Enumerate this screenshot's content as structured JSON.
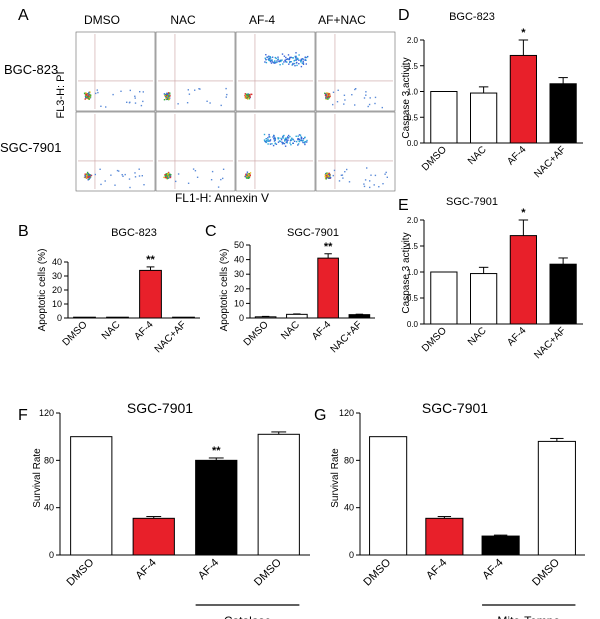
{
  "chart_data": [
    {
      "panel": "A",
      "type": "scatter",
      "title": "",
      "xlabel": "FL1-H: Annexin V",
      "ylabel": "FL3-H: PI",
      "columns": [
        "DMSO",
        "NAC",
        "AF-4",
        "AF+NAC"
      ],
      "rows": [
        "BGC-823",
        "SGC-7901"
      ]
    },
    {
      "panel": "B",
      "type": "bar",
      "title": "BGC-823",
      "ylabel": "Apoptotic cells (%)",
      "xlabel": "",
      "categories": [
        "DMSO",
        "NAC",
        "AF-4",
        "NAC+AF"
      ],
      "values": [
        0.3,
        0.3,
        34,
        0.3
      ],
      "errors": [
        0,
        0,
        2.5,
        0
      ],
      "colors": [
        "#ffffff",
        "#ffffff",
        "#e8202a",
        "#000000"
      ],
      "ylim": [
        0,
        40
      ],
      "yticks": [
        0,
        10,
        20,
        30,
        40
      ],
      "annotations": [
        "",
        "",
        "**",
        ""
      ]
    },
    {
      "panel": "C",
      "type": "bar",
      "title": "SGC-7901",
      "ylabel": "Apoptotic cells (%)",
      "xlabel": "",
      "categories": [
        "DMSO",
        "NAC",
        "AF-4",
        "NAC+AF"
      ],
      "values": [
        0.8,
        2.5,
        41,
        2.3
      ],
      "errors": [
        0.3,
        0.3,
        3,
        0.3
      ],
      "colors": [
        "#ffffff",
        "#ffffff",
        "#e8202a",
        "#000000"
      ],
      "ylim": [
        0,
        50
      ],
      "yticks": [
        0,
        10,
        20,
        30,
        40,
        50
      ],
      "annotations": [
        "",
        "",
        "**",
        ""
      ]
    },
    {
      "panel": "D",
      "type": "bar",
      "title": "BGC-823",
      "ylabel": "Caspase 3 activity",
      "xlabel": "",
      "categories": [
        "DMSO",
        "NAC",
        "AF-4",
        "NAC+AF"
      ],
      "values": [
        1.0,
        0.97,
        1.7,
        1.15
      ],
      "errors": [
        0,
        0.12,
        0.3,
        0.12
      ],
      "colors": [
        "#ffffff",
        "#ffffff",
        "#e8202a",
        "#000000"
      ],
      "ylim": [
        0,
        2.0
      ],
      "yticks": [
        "0.0",
        "0.5",
        "1.0",
        "1.5",
        "2.0"
      ],
      "annotations": [
        "",
        "",
        "*",
        ""
      ]
    },
    {
      "panel": "E",
      "type": "bar",
      "title": "SGC-7901",
      "ylabel": "Caspase 3 activity",
      "xlabel": "",
      "categories": [
        "DMSO",
        "NAC",
        "AF-4",
        "NAC+AF"
      ],
      "values": [
        1.0,
        0.97,
        1.7,
        1.15
      ],
      "errors": [
        0,
        0.12,
        0.3,
        0.12
      ],
      "colors": [
        "#ffffff",
        "#ffffff",
        "#e8202a",
        "#000000"
      ],
      "ylim": [
        0,
        2.0
      ],
      "yticks": [
        "0.0",
        "0.5",
        "1.0",
        "1.5",
        "2.0"
      ],
      "annotations": [
        "",
        "",
        "*",
        ""
      ]
    },
    {
      "panel": "F",
      "type": "bar",
      "title": "SGC-7901",
      "ylabel": "Survival Rate",
      "xlabel": "",
      "categories": [
        "DMSO",
        "AF-4",
        "AF-4",
        "DMSO"
      ],
      "values": [
        100,
        31,
        80,
        102
      ],
      "errors": [
        0,
        1.5,
        2,
        2
      ],
      "colors": [
        "#ffffff",
        "#e8202a",
        "#000000",
        "#ffffff"
      ],
      "ylim": [
        0,
        120
      ],
      "yticks": [
        0,
        40,
        80,
        120
      ],
      "annotations": [
        "",
        "",
        "**",
        ""
      ],
      "group_label": "Catalase"
    },
    {
      "panel": "G",
      "type": "bar",
      "title": "SGC-7901",
      "ylabel": "Survival Rate",
      "xlabel": "",
      "categories": [
        "DMSO",
        "AF-4",
        "AF-4",
        "DMSO"
      ],
      "values": [
        100,
        31,
        16,
        96
      ],
      "errors": [
        0,
        1.5,
        0.8,
        2.5
      ],
      "colors": [
        "#ffffff",
        "#e8202a",
        "#000000",
        "#ffffff"
      ],
      "ylim": [
        0,
        120
      ],
      "yticks": [
        0,
        40,
        80,
        120
      ],
      "annotations": [
        "",
        "",
        "",
        ""
      ],
      "group_label": "Mito-Tempo"
    }
  ]
}
